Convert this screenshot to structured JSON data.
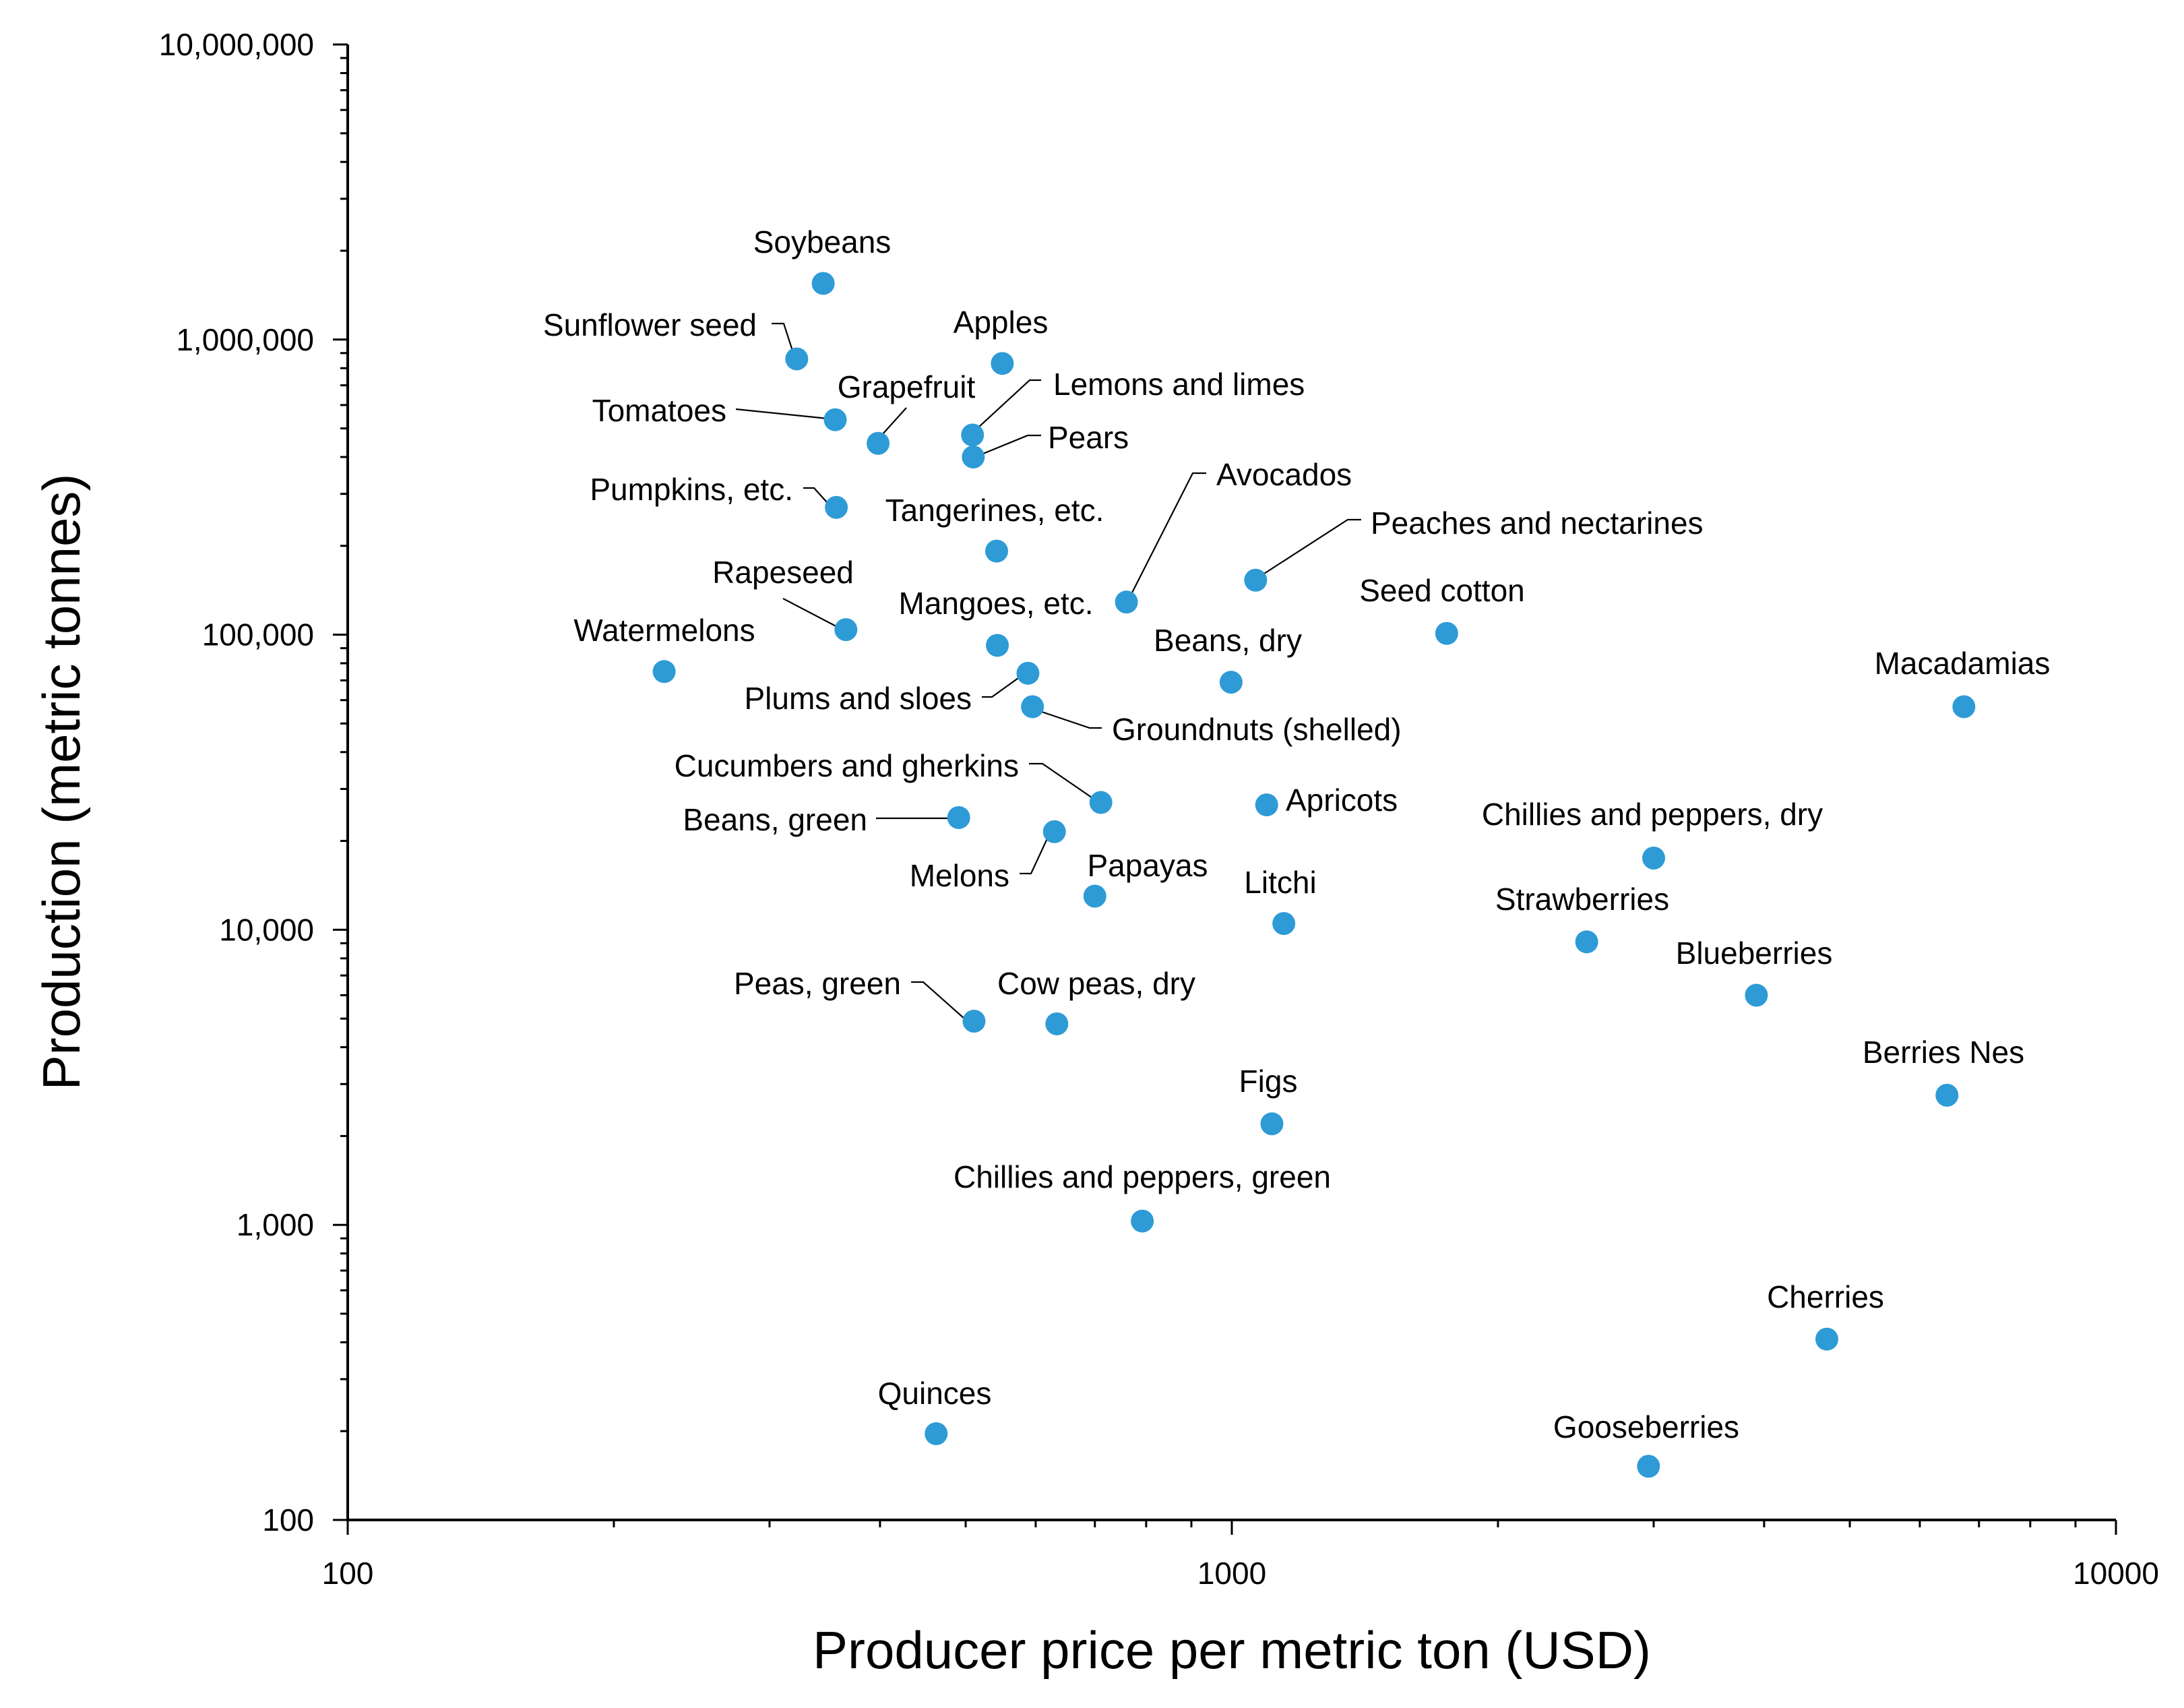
{
  "chart_data": {
    "type": "scatter",
    "title": "",
    "xlabel": "Producer price per metric ton (USD)",
    "ylabel": "Production (metric tonnes)",
    "xscale": "log",
    "yscale": "log",
    "xlim": [
      100,
      10000
    ],
    "ylim": [
      100,
      10000000
    ],
    "grid": false,
    "x_ticks": [
      {
        "value": 100,
        "label": "100"
      },
      {
        "value": 1000,
        "label": "1000"
      },
      {
        "value": 10000,
        "label": "10000"
      }
    ],
    "y_ticks": [
      {
        "value": 100,
        "label": "100"
      },
      {
        "value": 1000,
        "label": "1,000"
      },
      {
        "value": 10000,
        "label": "10,000"
      },
      {
        "value": 100000,
        "label": "100,000"
      },
      {
        "value": 1000000,
        "label": "1,000,000"
      },
      {
        "value": 10000000,
        "label": "10,000,000"
      }
    ],
    "marker_color": "#2E9BD6",
    "points": [
      {
        "name": "Soybeans",
        "x": 345,
        "y": 1550000
      },
      {
        "name": "Sunflower seed",
        "x": 322,
        "y": 860000
      },
      {
        "name": "Apples",
        "x": 550,
        "y": 830000
      },
      {
        "name": "Tomatoes",
        "x": 356,
        "y": 535000
      },
      {
        "name": "Grapefruit",
        "x": 398,
        "y": 445000
      },
      {
        "name": "Lemons and limes",
        "x": 509,
        "y": 475000
      },
      {
        "name": "Pears",
        "x": 510,
        "y": 400000
      },
      {
        "name": "Pumpkins, etc.",
        "x": 357,
        "y": 270000
      },
      {
        "name": "Tangerines, etc.",
        "x": 542,
        "y": 192000
      },
      {
        "name": "Avocados",
        "x": 760,
        "y": 129000
      },
      {
        "name": "Peaches and nectarines",
        "x": 1064,
        "y": 153000
      },
      {
        "name": "Rapeseed",
        "x": 366,
        "y": 104000
      },
      {
        "name": "Seed cotton",
        "x": 1750,
        "y": 101000
      },
      {
        "name": "Watermelons",
        "x": 228,
        "y": 75000
      },
      {
        "name": "Mangoes, etc.",
        "x": 543,
        "y": 92000
      },
      {
        "name": "Beans, dry",
        "x": 998,
        "y": 69000
      },
      {
        "name": "Plums and sloes",
        "x": 588,
        "y": 74000
      },
      {
        "name": "Groundnuts (shelled)",
        "x": 595,
        "y": 57000
      },
      {
        "name": "Macadamias",
        "x": 6730,
        "y": 57000
      },
      {
        "name": "Cucumbers and gherkins",
        "x": 711,
        "y": 27000
      },
      {
        "name": "Apricots",
        "x": 1095,
        "y": 26500
      },
      {
        "name": "Beans, green",
        "x": 491,
        "y": 24000
      },
      {
        "name": "Melons",
        "x": 630,
        "y": 21500
      },
      {
        "name": "Chillies and peppers, dry",
        "x": 3000,
        "y": 17500
      },
      {
        "name": "Papayas",
        "x": 700,
        "y": 13000
      },
      {
        "name": "Litchi",
        "x": 1145,
        "y": 10500
      },
      {
        "name": "Strawberries",
        "x": 2520,
        "y": 9100
      },
      {
        "name": "Blueberries",
        "x": 3920,
        "y": 6000
      },
      {
        "name": "Peas, green",
        "x": 511,
        "y": 4900
      },
      {
        "name": "Cow peas, dry",
        "x": 634,
        "y": 4800
      },
      {
        "name": "Berries Nes",
        "x": 6440,
        "y": 2750
      },
      {
        "name": "Figs",
        "x": 1110,
        "y": 2200
      },
      {
        "name": "Chillies and peppers, green",
        "x": 792,
        "y": 1030
      },
      {
        "name": "Cherries",
        "x": 4710,
        "y": 410
      },
      {
        "name": "Quinces",
        "x": 463,
        "y": 196
      },
      {
        "name": "Gooseberries",
        "x": 2960,
        "y": 152
      }
    ]
  }
}
